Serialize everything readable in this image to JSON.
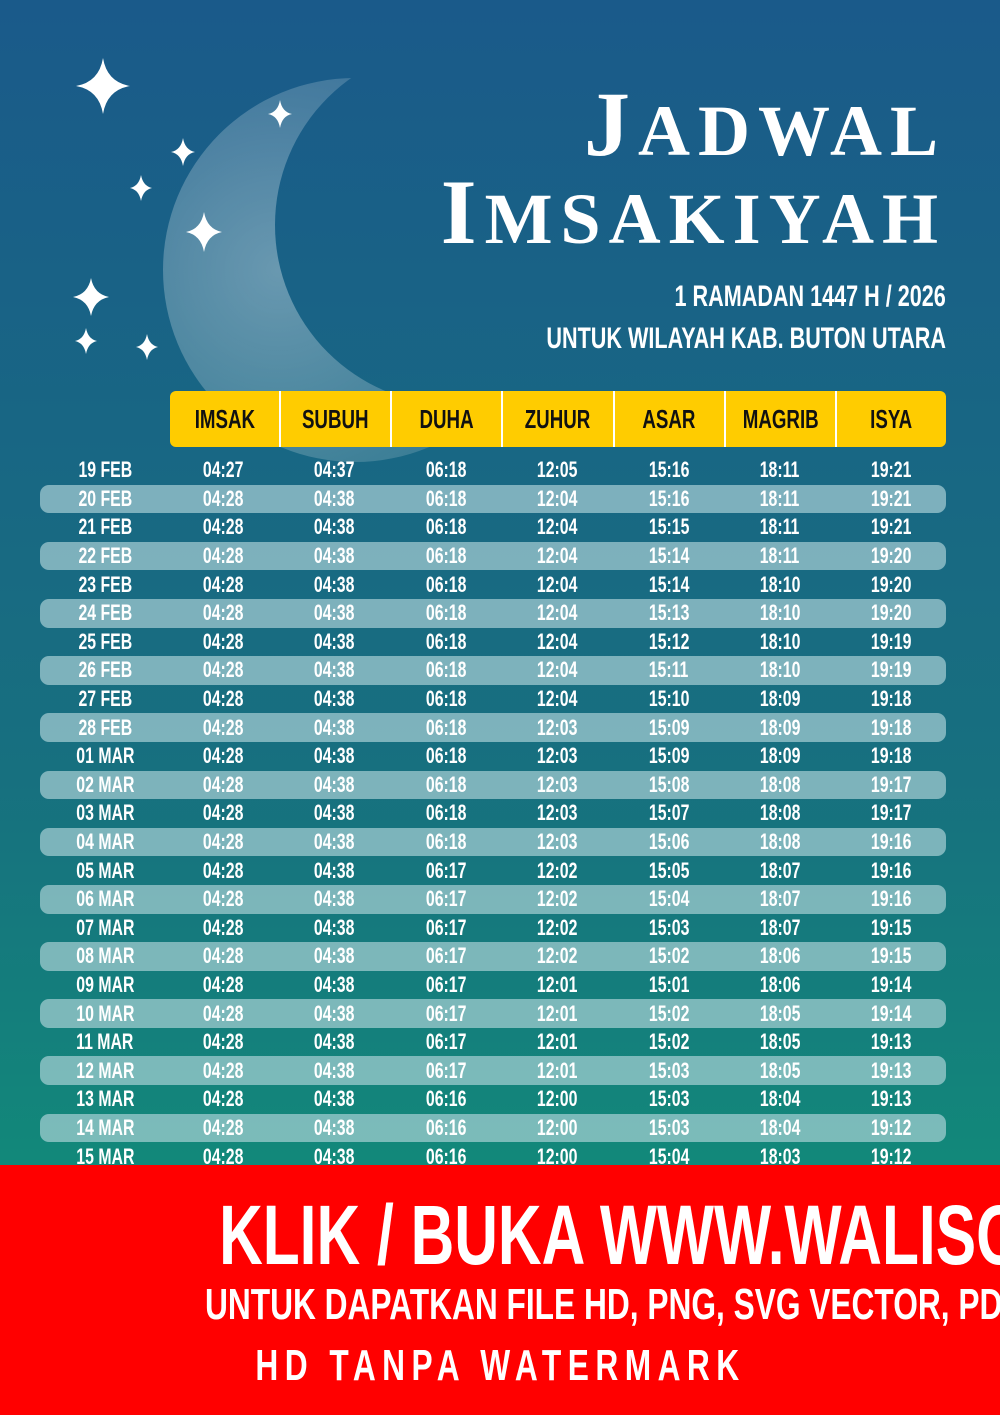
{
  "title": {
    "line1_first": "J",
    "line1_rest": "ADWAL",
    "line2_first": "I",
    "line2_rest": "MSAKIYAH"
  },
  "subtitle": {
    "date": "1 RAMADAN 1447 H / 2026",
    "region": "UNTUK WILAYAH KAB. BUTON UTARA"
  },
  "colors": {
    "header": "#ffcc00",
    "banner": "#ff0000",
    "bg_top": "#1a5a8a",
    "bg_bottom": "#12887a"
  },
  "icons": [
    "crescent-moon-icon",
    "star-sparkle-icon"
  ],
  "table": {
    "columns": [
      "IMSAK",
      "SUBUH",
      "DUHA",
      "ZUHUR",
      "ASAR",
      "MAGRIB",
      "ISYA"
    ],
    "rows": [
      [
        "19 FEB",
        "04:27",
        "04:37",
        "06:18",
        "12:05",
        "15:16",
        "18:11",
        "19:21"
      ],
      [
        "20 FEB",
        "04:28",
        "04:38",
        "06:18",
        "12:04",
        "15:16",
        "18:11",
        "19:21"
      ],
      [
        "21 FEB",
        "04:28",
        "04:38",
        "06:18",
        "12:04",
        "15:15",
        "18:11",
        "19:21"
      ],
      [
        "22 FEB",
        "04:28",
        "04:38",
        "06:18",
        "12:04",
        "15:14",
        "18:11",
        "19:20"
      ],
      [
        "23 FEB",
        "04:28",
        "04:38",
        "06:18",
        "12:04",
        "15:14",
        "18:10",
        "19:20"
      ],
      [
        "24 FEB",
        "04:28",
        "04:38",
        "06:18",
        "12:04",
        "15:13",
        "18:10",
        "19:20"
      ],
      [
        "25 FEB",
        "04:28",
        "04:38",
        "06:18",
        "12:04",
        "15:12",
        "18:10",
        "19:19"
      ],
      [
        "26 FEB",
        "04:28",
        "04:38",
        "06:18",
        "12:04",
        "15:11",
        "18:10",
        "19:19"
      ],
      [
        "27 FEB",
        "04:28",
        "04:38",
        "06:18",
        "12:04",
        "15:10",
        "18:09",
        "19:18"
      ],
      [
        "28 FEB",
        "04:28",
        "04:38",
        "06:18",
        "12:03",
        "15:09",
        "18:09",
        "19:18"
      ],
      [
        "01 MAR",
        "04:28",
        "04:38",
        "06:18",
        "12:03",
        "15:09",
        "18:09",
        "19:18"
      ],
      [
        "02 MAR",
        "04:28",
        "04:38",
        "06:18",
        "12:03",
        "15:08",
        "18:08",
        "19:17"
      ],
      [
        "03 MAR",
        "04:28",
        "04:38",
        "06:18",
        "12:03",
        "15:07",
        "18:08",
        "19:17"
      ],
      [
        "04 MAR",
        "04:28",
        "04:38",
        "06:18",
        "12:03",
        "15:06",
        "18:08",
        "19:16"
      ],
      [
        "05 MAR",
        "04:28",
        "04:38",
        "06:17",
        "12:02",
        "15:05",
        "18:07",
        "19:16"
      ],
      [
        "06 MAR",
        "04:28",
        "04:38",
        "06:17",
        "12:02",
        "15:04",
        "18:07",
        "19:16"
      ],
      [
        "07 MAR",
        "04:28",
        "04:38",
        "06:17",
        "12:02",
        "15:03",
        "18:07",
        "19:15"
      ],
      [
        "08 MAR",
        "04:28",
        "04:38",
        "06:17",
        "12:02",
        "15:02",
        "18:06",
        "19:15"
      ],
      [
        "09 MAR",
        "04:28",
        "04:38",
        "06:17",
        "12:01",
        "15:01",
        "18:06",
        "19:14"
      ],
      [
        "10 MAR",
        "04:28",
        "04:38",
        "06:17",
        "12:01",
        "15:02",
        "18:05",
        "19:14"
      ],
      [
        "11 MAR",
        "04:28",
        "04:38",
        "06:17",
        "12:01",
        "15:02",
        "18:05",
        "19:13"
      ],
      [
        "12 MAR",
        "04:28",
        "04:38",
        "06:17",
        "12:01",
        "15:03",
        "18:05",
        "19:13"
      ],
      [
        "13 MAR",
        "04:28",
        "04:38",
        "06:16",
        "12:00",
        "15:03",
        "18:04",
        "19:13"
      ],
      [
        "14 MAR",
        "04:28",
        "04:38",
        "06:16",
        "12:00",
        "15:03",
        "18:04",
        "19:12"
      ],
      [
        "15 MAR",
        "04:28",
        "04:38",
        "06:16",
        "12:00",
        "15:04",
        "18:03",
        "19:12"
      ]
    ]
  },
  "banner": {
    "line1": "KLIK / BUKA WWW.WALISONGO.CO.ID",
    "line2": "UNTUK DAPATKAN FILE HD, PNG, SVG VECTOR, PDF, WORD, EXCEL",
    "line3": "HD TANPA WATERMARK"
  }
}
